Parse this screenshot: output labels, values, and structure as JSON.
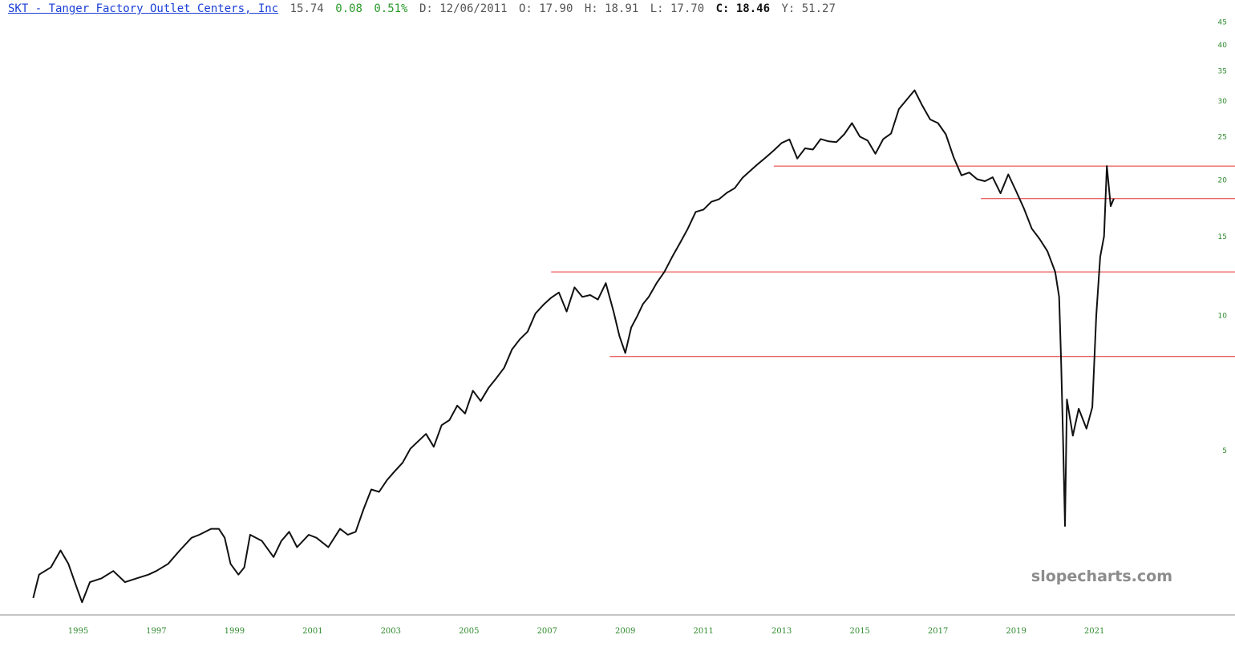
{
  "header": {
    "symbol_label": "SKT - Tanger Factory Outlet Centers, Inc",
    "last": "15.74",
    "change": "0.08",
    "change_pct": "0.51%",
    "date": "D: 12/06/2011",
    "open": "O: 17.90",
    "high": "H: 18.91",
    "low": "L: 17.70",
    "close_label": "C:",
    "close_value": "18.46",
    "y_value": "Y: 51.27"
  },
  "watermark": "slopecharts.com",
  "colors": {
    "price_line": "#111111",
    "support_lines": "#e53030",
    "tick_labels": "#2d8a2d",
    "link": "#1a3fd6",
    "positive": "#2a9a2a"
  },
  "chart_data": {
    "type": "line",
    "scale": "log",
    "ylim": [
      2.2,
      46
    ],
    "xlim": [
      1993.0,
      2024.6
    ],
    "y_ticks": [
      5,
      10,
      15,
      20,
      25,
      30,
      35,
      40,
      45
    ],
    "x_ticks": [
      1995,
      1997,
      1999,
      2001,
      2003,
      2005,
      2007,
      2009,
      2011,
      2013,
      2015,
      2017,
      2019,
      2021
    ],
    "x_tick_labels": [
      "1995",
      "1997",
      "1999",
      "2001",
      "2003",
      "2005",
      "2007",
      "2009",
      "2011",
      "2013",
      "2015",
      "2017",
      "2019",
      "2021"
    ],
    "grid": false,
    "series": [
      {
        "x": [
          1993.85,
          1994.0,
          1994.3,
          1994.55,
          1994.75,
          1994.95,
          1995.1,
          1995.3,
          1995.6,
          1995.9,
          1996.2,
          1996.5,
          1996.8,
          1997.0,
          1997.3,
          1997.6,
          1997.9,
          1998.1,
          1998.4,
          1998.6,
          1998.75,
          1998.9,
          1999.1,
          1999.25,
          1999.4,
          1999.7,
          2000.0,
          2000.2,
          2000.4,
          2000.6,
          2000.9,
          2001.1,
          2001.4,
          2001.7,
          2001.9,
          2002.1,
          2002.3,
          2002.5,
          2002.7,
          2002.9,
          2003.1,
          2003.3,
          2003.5,
          2003.7,
          2003.9,
          2004.1,
          2004.3,
          2004.5,
          2004.7,
          2004.9,
          2005.1,
          2005.3,
          2005.5,
          2005.7,
          2005.9,
          2006.1,
          2006.3,
          2006.5,
          2006.7,
          2006.9,
          2007.1,
          2007.3,
          2007.5,
          2007.7,
          2007.9,
          2008.1,
          2008.3,
          2008.5,
          2008.7,
          2008.85,
          2009.0,
          2009.15,
          2009.3,
          2009.45,
          2009.6,
          2009.8,
          2010.0,
          2010.2,
          2010.4,
          2010.6,
          2010.8,
          2011.0,
          2011.2,
          2011.4,
          2011.6,
          2011.8,
          2012.0,
          2012.2,
          2012.4,
          2012.6,
          2012.8,
          2013.0,
          2013.2,
          2013.4,
          2013.6,
          2013.8,
          2014.0,
          2014.2,
          2014.4,
          2014.6,
          2014.8,
          2015.0,
          2015.2,
          2015.4,
          2015.6,
          2015.8,
          2016.0,
          2016.2,
          2016.4,
          2016.6,
          2016.8,
          2017.0,
          2017.2,
          2017.4,
          2017.6,
          2017.8,
          2018.0,
          2018.2,
          2018.4,
          2018.6,
          2018.8,
          2019.0,
          2019.2,
          2019.4,
          2019.6,
          2019.8,
          2020.0,
          2020.1,
          2020.15,
          2020.2,
          2020.25,
          2020.3,
          2020.45,
          2020.6,
          2020.8,
          2020.95,
          2021.05,
          2021.15,
          2021.25,
          2021.32,
          2021.42,
          2021.5
        ],
        "y": [
          2.35,
          2.65,
          2.75,
          3.0,
          2.8,
          2.5,
          2.3,
          2.55,
          2.6,
          2.7,
          2.55,
          2.6,
          2.65,
          2.7,
          2.8,
          3.0,
          3.2,
          3.25,
          3.35,
          3.35,
          3.2,
          2.8,
          2.65,
          2.75,
          3.25,
          3.15,
          2.9,
          3.15,
          3.3,
          3.05,
          3.25,
          3.2,
          3.05,
          3.35,
          3.25,
          3.3,
          3.7,
          4.1,
          4.05,
          4.3,
          4.5,
          4.7,
          5.05,
          5.25,
          5.45,
          5.1,
          5.7,
          5.85,
          6.3,
          6.05,
          6.8,
          6.45,
          6.9,
          7.25,
          7.65,
          8.4,
          8.85,
          9.2,
          10.1,
          10.55,
          10.95,
          11.25,
          10.2,
          11.55,
          11.0,
          11.1,
          10.85,
          11.8,
          10.2,
          9.0,
          8.25,
          9.4,
          9.95,
          10.6,
          11.0,
          11.8,
          12.5,
          13.5,
          14.5,
          15.6,
          17.0,
          17.2,
          17.9,
          18.15,
          18.75,
          19.2,
          20.25,
          21.0,
          21.75,
          22.5,
          23.3,
          24.2,
          24.65,
          22.35,
          23.55,
          23.4,
          24.7,
          24.4,
          24.3,
          25.3,
          26.8,
          25.0,
          24.5,
          22.9,
          24.7,
          25.4,
          28.8,
          30.2,
          31.7,
          29.3,
          27.3,
          26.8,
          25.3,
          22.5,
          20.5,
          20.8,
          20.1,
          19.9,
          20.3,
          18.7,
          20.6,
          18.9,
          17.3,
          15.6,
          14.8,
          13.9,
          12.5,
          11.0,
          8.0,
          5.3,
          3.4,
          6.5,
          5.4,
          6.2,
          5.6,
          6.25,
          10.0,
          13.5,
          15.0,
          21.5,
          17.5,
          18.2
        ]
      }
    ],
    "horizontal_lines": [
      {
        "y": 21.5,
        "x_start": 2012.8
      },
      {
        "y": 18.2,
        "x_start": 2018.1
      },
      {
        "y": 12.5,
        "x_start": 2007.1
      },
      {
        "y": 8.1,
        "x_start": 2008.6
      }
    ]
  }
}
